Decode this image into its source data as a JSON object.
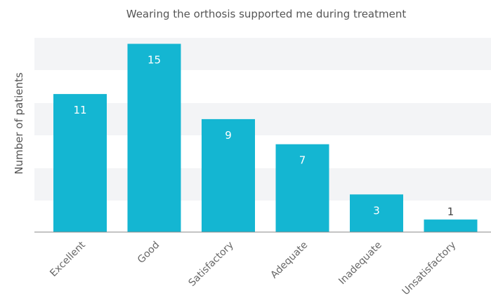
{
  "chart_data": {
    "type": "bar",
    "title": "Wearing the orthosis supported me during treatment",
    "xlabel": "",
    "ylabel": "Number of patients",
    "categories": [
      "Excellent",
      "Good",
      "Satisfactory",
      "Adequate",
      "Inadequate",
      "Unsatisfactory"
    ],
    "values": [
      11,
      15,
      9,
      7,
      3,
      1
    ],
    "ylim": [
      0,
      15.5
    ],
    "grid": "alternating horizontal bands",
    "legend": "none",
    "colors": {
      "bar": "#14b6d2",
      "band": "#f3f4f6",
      "axis": "#888888"
    }
  }
}
